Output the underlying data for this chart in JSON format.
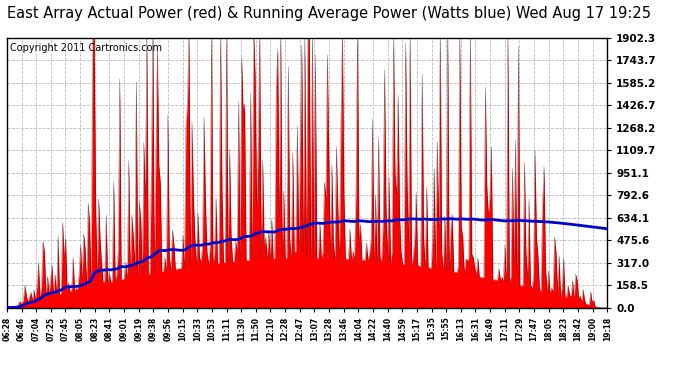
{
  "title": "East Array Actual Power (red) & Running Average Power (Watts blue) Wed Aug 17 19:25",
  "copyright": "Copyright 2011 Cartronics.com",
  "ylabel_right": [
    "0.0",
    "158.5",
    "317.0",
    "475.6",
    "634.1",
    "792.6",
    "951.1",
    "1109.7",
    "1268.2",
    "1426.7",
    "1585.2",
    "1743.7",
    "1902.3"
  ],
  "ytick_values": [
    0.0,
    158.5,
    317.0,
    475.6,
    634.1,
    792.6,
    951.1,
    1109.7,
    1268.2,
    1426.7,
    1585.2,
    1743.7,
    1902.3
  ],
  "ymax": 1902.3,
  "background_color": "#ffffff",
  "plot_bg_color": "#ffffff",
  "red_color": "#ff0000",
  "blue_color": "#0000cc",
  "grid_color": "#bbbbbb",
  "title_fontsize": 10.5,
  "copyright_fontsize": 7,
  "xtick_labels": [
    "06:28",
    "06:46",
    "07:04",
    "07:25",
    "07:45",
    "08:05",
    "08:23",
    "08:41",
    "09:01",
    "09:19",
    "09:38",
    "09:56",
    "10:15",
    "10:33",
    "10:53",
    "11:11",
    "11:30",
    "11:50",
    "12:10",
    "12:28",
    "12:47",
    "13:07",
    "13:28",
    "13:46",
    "14:04",
    "14:22",
    "14:40",
    "14:59",
    "15:17",
    "15:35",
    "15:55",
    "16:13",
    "16:31",
    "16:49",
    "17:11",
    "17:29",
    "17:47",
    "18:05",
    "18:23",
    "18:42",
    "19:00",
    "19:18"
  ]
}
